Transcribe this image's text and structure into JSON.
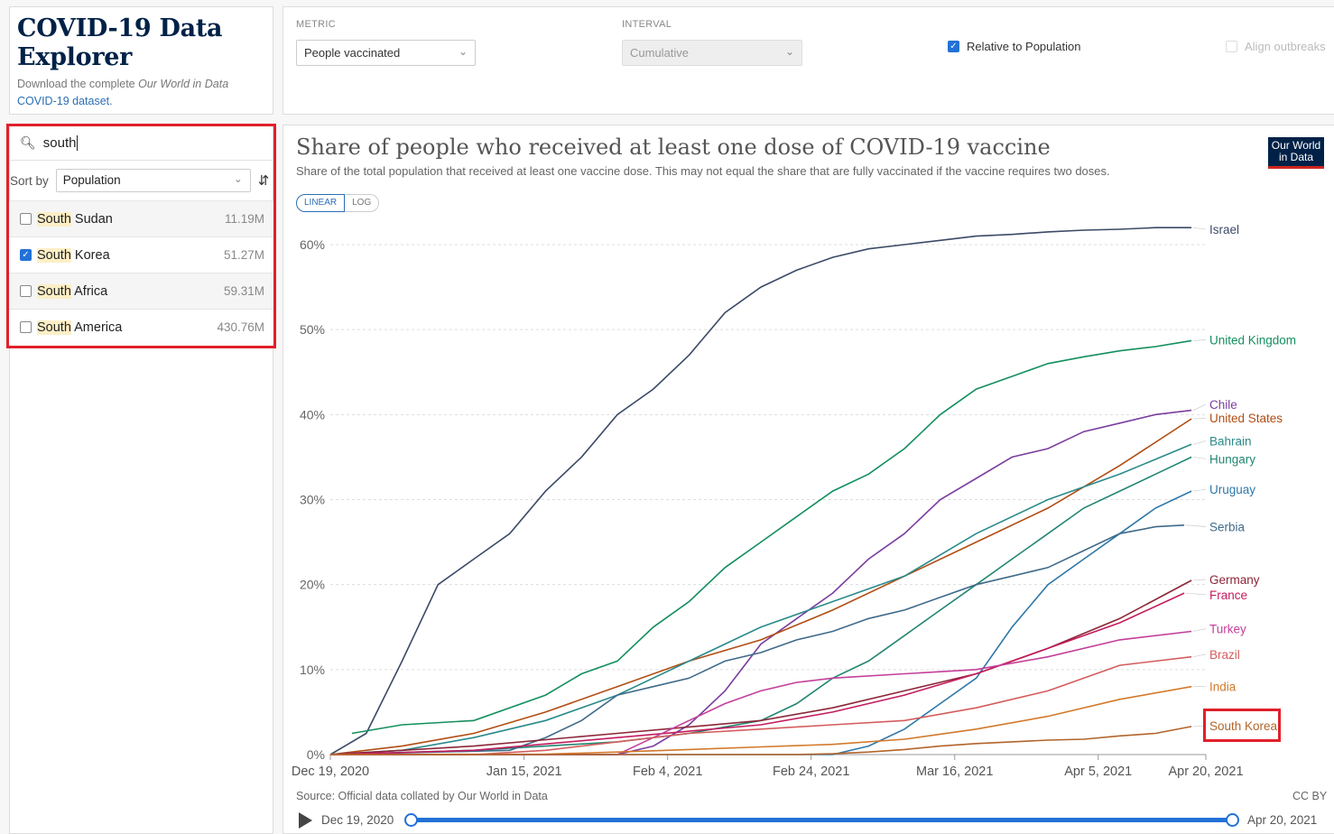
{
  "app": {
    "title_line1": "COVID-19 Data",
    "title_line2": "Explorer",
    "subtitle_prefix": "Download the complete ",
    "subtitle_italic": "Our World in Data",
    "subtitle_link": "COVID-19 dataset."
  },
  "controls": {
    "metric_label": "METRIC",
    "metric_value": "People vaccinated",
    "interval_label": "INTERVAL",
    "interval_value": "Cumulative",
    "relative_label": "Relative to Population",
    "relative_checked": true,
    "align_label": "Align outbreaks",
    "align_checked": false
  },
  "sidebar": {
    "search_query": "south",
    "sort_label": "Sort by",
    "sort_value": "Population",
    "results": [
      {
        "match": "South",
        "rest": " Sudan",
        "pop": "11.19M",
        "checked": false
      },
      {
        "match": "South",
        "rest": " Korea",
        "pop": "51.27M",
        "checked": true
      },
      {
        "match": "South",
        "rest": " Africa",
        "pop": "59.31M",
        "checked": false
      },
      {
        "match": "South",
        "rest": " America",
        "pop": "430.76M",
        "checked": false
      }
    ]
  },
  "chart": {
    "title": "Share of people who received at least one dose of COVID-19 vaccine",
    "subtitle": "Share of the total population that received at least one vaccine dose. This may not equal the share that are fully vaccinated if the vaccine requires two doses.",
    "logo_line1": "Our World",
    "logo_line2": "in Data",
    "scale_linear": "LINEAR",
    "scale_log": "LOG",
    "source": "Source: Official data collated by Our World in Data",
    "license": "CC BY",
    "timeline_start": "Dec 19, 2020",
    "timeline_end": "Apr 20, 2021"
  },
  "chart_data": {
    "type": "line",
    "title": "Share of people who received at least one dose of COVID-19 vaccine",
    "ylabel": "",
    "xlabel": "",
    "ylim": [
      0,
      62
    ],
    "yticks": [
      0,
      10,
      20,
      30,
      40,
      50,
      60
    ],
    "ytick_labels": [
      "0%",
      "10%",
      "20%",
      "30%",
      "40%",
      "50%",
      "60%"
    ],
    "xlim": [
      0,
      122
    ],
    "xtick_days": [
      0,
      27,
      47,
      67,
      87,
      107,
      122
    ],
    "xtick_labels": [
      "Dec 19, 2020",
      "Jan 15, 2021",
      "Feb 4, 2021",
      "Feb 24, 2021",
      "Mar 16, 2021",
      "Apr 5, 2021",
      "Apr 20, 2021"
    ],
    "series": [
      {
        "name": "Israel",
        "color": "#3b4a66",
        "x": [
          0,
          5,
          10,
          15,
          20,
          25,
          30,
          35,
          40,
          45,
          50,
          55,
          60,
          65,
          70,
          75,
          80,
          85,
          90,
          95,
          100,
          105,
          110,
          115,
          120
        ],
        "values": [
          0,
          2.5,
          11,
          20,
          23,
          26,
          31,
          35,
          40,
          43,
          47,
          52,
          55,
          57,
          58.5,
          59.5,
          60,
          60.5,
          61,
          61.2,
          61.5,
          61.7,
          61.8,
          62,
          62
        ]
      },
      {
        "name": "United Kingdom",
        "color": "#148f5e",
        "x": [
          3,
          10,
          20,
          30,
          35,
          40,
          45,
          50,
          55,
          60,
          65,
          70,
          75,
          80,
          85,
          90,
          95,
          100,
          105,
          110,
          115,
          120
        ],
        "values": [
          2.5,
          3.5,
          4,
          7,
          9.5,
          11,
          15,
          18,
          22,
          25,
          28,
          31,
          33,
          36,
          40,
          43,
          44.5,
          46,
          46.8,
          47.5,
          48,
          48.7
        ]
      },
      {
        "name": "Chile",
        "color": "#7b3d9f",
        "x": [
          0,
          40,
          45,
          50,
          55,
          60,
          65,
          70,
          75,
          80,
          85,
          90,
          95,
          100,
          105,
          110,
          115,
          120
        ],
        "values": [
          0,
          0,
          1,
          3.5,
          7.5,
          13,
          16,
          19,
          23,
          26,
          30,
          32.5,
          35,
          36,
          38,
          39,
          40,
          40.5
        ]
      },
      {
        "name": "United States",
        "color": "#b04d13",
        "x": [
          0,
          10,
          20,
          30,
          40,
          50,
          60,
          70,
          80,
          90,
          100,
          110,
          120
        ],
        "values": [
          0,
          1,
          2.5,
          5,
          8,
          11,
          13.5,
          17,
          21,
          25,
          29,
          34,
          39.5
        ]
      },
      {
        "name": "Bahrain",
        "color": "#2a8a8a",
        "x": [
          0,
          10,
          20,
          30,
          40,
          50,
          60,
          70,
          80,
          90,
          100,
          110,
          120
        ],
        "values": [
          0,
          0.5,
          2,
          4,
          7,
          11,
          15,
          18,
          21,
          26,
          30,
          33,
          36.5
        ]
      },
      {
        "name": "Hungary",
        "color": "#238672",
        "x": [
          0,
          20,
          40,
          50,
          60,
          65,
          70,
          75,
          80,
          85,
          90,
          95,
          100,
          105,
          110,
          115,
          120
        ],
        "values": [
          0,
          0.5,
          1.5,
          2.5,
          4,
          6,
          9,
          11,
          14,
          17,
          20,
          23,
          26,
          29,
          31,
          33,
          35
        ]
      },
      {
        "name": "Uruguay",
        "color": "#2e78a8",
        "x": [
          0,
          70,
          75,
          80,
          85,
          90,
          95,
          100,
          105,
          110,
          115,
          120
        ],
        "values": [
          0,
          0,
          1,
          3,
          6,
          9,
          15,
          20,
          23,
          26,
          29,
          31
        ]
      },
      {
        "name": "Serbia",
        "color": "#3f6a8a",
        "x": [
          0,
          25,
          30,
          35,
          40,
          45,
          50,
          55,
          60,
          65,
          70,
          75,
          80,
          85,
          90,
          95,
          100,
          105,
          110,
          115,
          119
        ],
        "values": [
          0,
          0.5,
          2,
          4,
          7,
          8,
          9,
          11,
          12,
          13.5,
          14.5,
          16,
          17,
          18.5,
          20,
          21,
          22,
          24,
          26,
          26.8,
          27
        ]
      },
      {
        "name": "Germany",
        "color": "#8c2637",
        "x": [
          0,
          20,
          40,
          60,
          70,
          80,
          90,
          100,
          110,
          120
        ],
        "values": [
          0,
          1,
          2.5,
          4,
          5.5,
          7.5,
          9.5,
          12.5,
          16,
          20.5
        ]
      },
      {
        "name": "France",
        "color": "#c21c5c",
        "x": [
          0,
          20,
          40,
          60,
          70,
          80,
          90,
          100,
          110,
          119
        ],
        "values": [
          0,
          0.5,
          2,
          3.5,
          5,
          7,
          9.5,
          12.5,
          15.5,
          19
        ]
      },
      {
        "name": "Turkey",
        "color": "#c33f9a",
        "x": [
          0,
          40,
          45,
          50,
          55,
          60,
          65,
          70,
          80,
          90,
          100,
          110,
          120
        ],
        "values": [
          0,
          0,
          2,
          4,
          6,
          7.5,
          8.5,
          9,
          9.5,
          10,
          11.5,
          13.5,
          14.5
        ]
      },
      {
        "name": "Brazil",
        "color": "#d45c5c",
        "x": [
          0,
          20,
          30,
          40,
          50,
          60,
          70,
          80,
          90,
          100,
          110,
          120
        ],
        "values": [
          0,
          0,
          0.5,
          1.5,
          2.5,
          3,
          3.5,
          4,
          5.5,
          7.5,
          10.5,
          11.5
        ]
      },
      {
        "name": "India",
        "color": "#d2792a",
        "x": [
          0,
          30,
          40,
          50,
          60,
          70,
          80,
          90,
          100,
          110,
          120
        ],
        "values": [
          0,
          0.05,
          0.3,
          0.6,
          0.9,
          1.2,
          1.8,
          3,
          4.5,
          6.5,
          8
        ]
      },
      {
        "name": "South Korea",
        "color": "#b2642b",
        "x": [
          0,
          65,
          70,
          75,
          80,
          85,
          90,
          95,
          100,
          105,
          110,
          115,
          120
        ],
        "values": [
          0,
          0,
          0.1,
          0.3,
          0.6,
          1,
          1.3,
          1.5,
          1.7,
          1.8,
          2.2,
          2.5,
          3.3
        ]
      }
    ],
    "label_y_percent": {
      "Israel": 61.8,
      "United Kingdom": 48.8,
      "Chile": 41.2,
      "United States": 39.6,
      "Bahrain": 36.9,
      "Hungary": 34.8,
      "Uruguay": 31.2,
      "Serbia": 26.8,
      "Germany": 20.6,
      "France": 18.8,
      "Turkey": 14.8,
      "Brazil": 11.8,
      "India": 8.0,
      "South Korea": 3.4
    }
  }
}
